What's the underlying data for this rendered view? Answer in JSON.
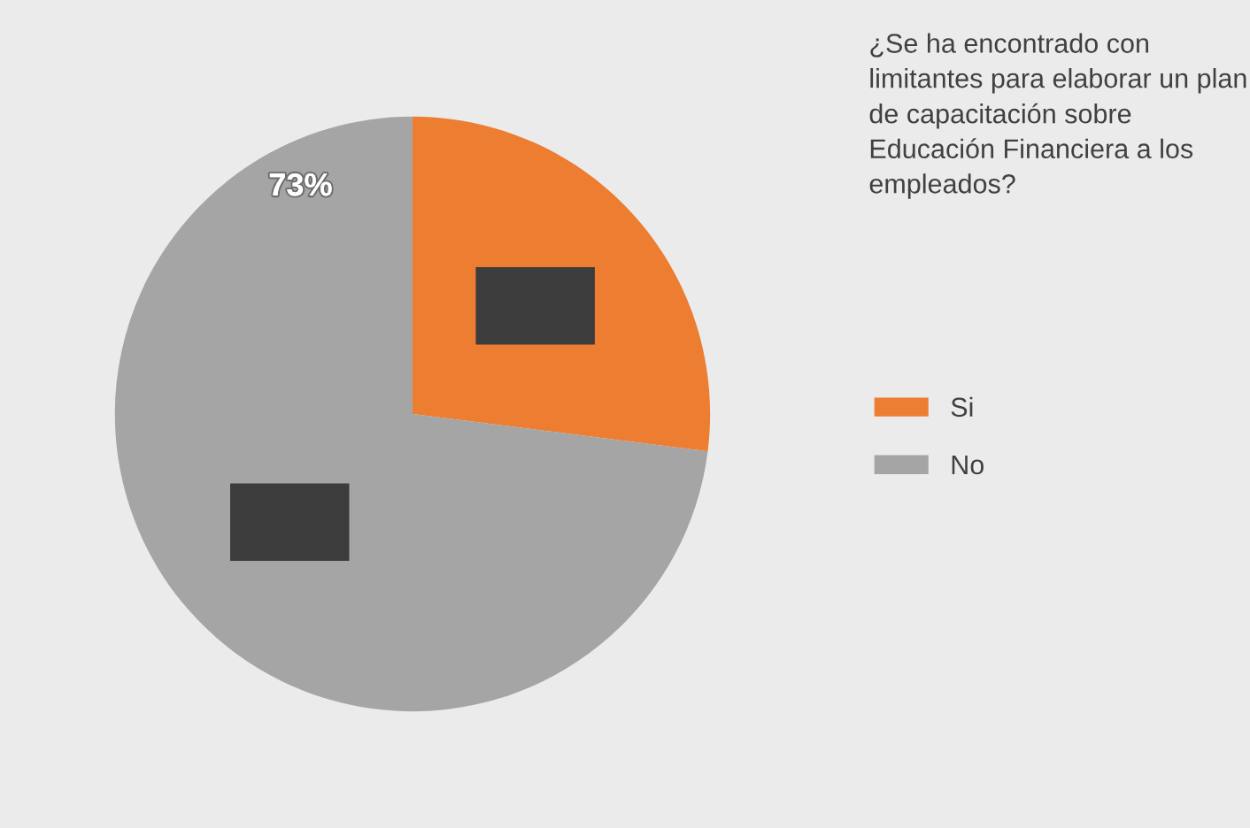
{
  "chart_data": {
    "type": "pie",
    "legend_title": "¿Se ha encontrado con limitantes para elaborar un plan de capacitación sobre Educación Financiera a los empleados?",
    "categories": [
      "Si",
      "No"
    ],
    "values": [
      27,
      73
    ],
    "colors": [
      "#ed7d31",
      "#a5a5a5"
    ],
    "value_labels": [
      null,
      "73%"
    ],
    "legend": "right"
  }
}
